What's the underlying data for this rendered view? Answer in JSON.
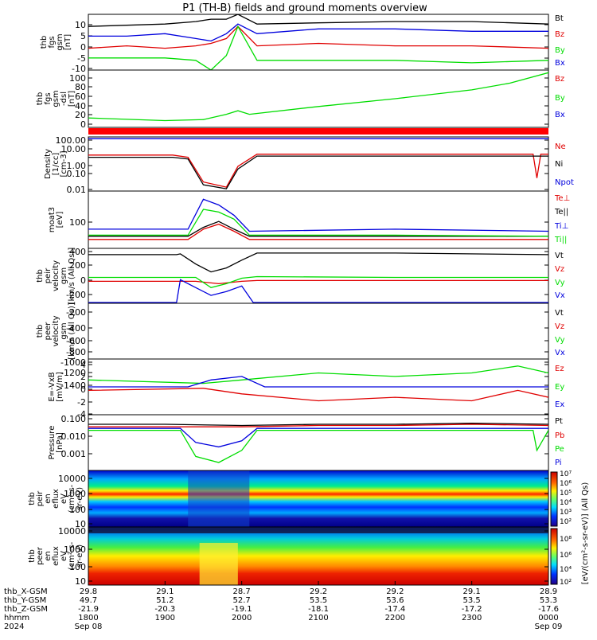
{
  "title": "P1  (TH-B) fields and ground moments overview",
  "colors": {
    "black": "#000000",
    "red": "#e00000",
    "green": "#00dd00",
    "blue": "#0000dd"
  },
  "panels": [
    {
      "id": "fgs",
      "ylabel": [
        "thb",
        "fgs",
        "gsm",
        "[nT]"
      ],
      "ticks": [
        "10",
        "5",
        "0",
        "-5",
        "-10"
      ],
      "legend": [
        {
          "label": "Bt",
          "color": "#000000"
        },
        {
          "label": "Bz",
          "color": "#e00000"
        },
        {
          "label": "By",
          "color": "#00dd00"
        },
        {
          "label": "Bx",
          "color": "#0000dd"
        }
      ]
    },
    {
      "id": "fgs_dsl",
      "ylabel": [
        "thb",
        "fgs",
        "gsm",
        "-dsl",
        "[nT]"
      ],
      "ticks": [
        "100",
        "80",
        "60",
        "40",
        "20",
        "0"
      ],
      "legend": [
        {
          "label": "Bz",
          "color": "#e00000"
        },
        {
          "label": "By",
          "color": "#00dd00"
        },
        {
          "label": "Bx",
          "color": "#0000dd"
        }
      ]
    },
    {
      "id": "density",
      "ylabel": [
        "Density",
        "[1/cc]",
        "[cm-3]"
      ],
      "ticks": [
        "100.00",
        "10.00",
        "1.00",
        "0.10",
        "0.01"
      ],
      "legend": [
        {
          "label": "Ne",
          "color": "#e00000"
        },
        {
          "label": "Ni",
          "color": "#000000"
        },
        {
          "label": "Npot",
          "color": "#0000dd"
        }
      ]
    },
    {
      "id": "temp",
      "ylabel": [
        "moat3",
        "[eV]"
      ],
      "ticks": [
        "100"
      ],
      "legend": [
        {
          "label": "Te⊥",
          "color": "#e00000"
        },
        {
          "label": "Te||",
          "color": "#000000"
        },
        {
          "label": "Ti⊥",
          "color": "#0000dd"
        },
        {
          "label": "Ti||",
          "color": "#00dd00"
        }
      ]
    },
    {
      "id": "peir_vel",
      "ylabel": [
        "thb",
        "peir",
        "velocity",
        "gsm",
        "[km/s (All Qs)]"
      ],
      "ticks": [
        "400",
        "200",
        "0",
        "-200"
      ],
      "legend": [
        {
          "label": "Vt",
          "color": "#000000"
        },
        {
          "label": "Vz",
          "color": "#e00000"
        },
        {
          "label": "Vy",
          "color": "#00dd00"
        },
        {
          "label": "Vx",
          "color": "#0000dd"
        }
      ]
    },
    {
      "id": "peer_vel",
      "ylabel": [
        "thb",
        "peer",
        "velocity",
        "gsm",
        "[km/s (All Qs)]"
      ],
      "ticks": [
        "-200",
        "-400",
        "-600",
        "-800",
        "-1000",
        "-1200",
        "-1400"
      ],
      "legend": [
        {
          "label": "Vt",
          "color": "#000000"
        },
        {
          "label": "Vz",
          "color": "#e00000"
        },
        {
          "label": "Vy",
          "color": "#00dd00"
        },
        {
          "label": "Vx",
          "color": "#0000dd"
        }
      ]
    },
    {
      "id": "efield",
      "ylabel": [
        "E=-VxB",
        "[mV/m]"
      ],
      "ticks": [
        "4",
        "2",
        "0",
        "-2",
        "-4"
      ],
      "legend": [
        {
          "label": "Ez",
          "color": "#e00000"
        },
        {
          "label": "Ey",
          "color": "#00dd00"
        },
        {
          "label": "Ex",
          "color": "#0000dd"
        }
      ]
    },
    {
      "id": "pressure",
      "ylabel": [
        "Pressure",
        "[nPa]"
      ],
      "ticks": [
        "0.100",
        "0.010",
        "0.001"
      ],
      "legend": [
        {
          "label": "Pt",
          "color": "#000000"
        },
        {
          "label": "Pb",
          "color": "#e00000"
        },
        {
          "label": "Pe",
          "color": "#00dd00"
        },
        {
          "label": "Pi",
          "color": "#0000dd"
        }
      ]
    },
    {
      "id": "peir_spec",
      "ylabel": [
        "thb",
        "peir",
        "en",
        "eflux",
        "eV",
        "(cm²-s-",
        "sr-eV)"
      ],
      "ticks": [
        "10000",
        "1000",
        "100",
        "10"
      ]
    },
    {
      "id": "peer_spec",
      "ylabel": [
        "thb",
        "peer",
        "en",
        "eflux",
        "eV",
        "(cm²-s-",
        "sr-eV)"
      ],
      "ticks": [
        "10000",
        "1000",
        "100",
        "10"
      ]
    }
  ],
  "colorbar_labels": {
    "ion": [
      "10⁷",
      "10⁶",
      "10⁵",
      "10⁴",
      "10³",
      "10²"
    ],
    "electron": [
      "10⁸",
      "10⁶",
      "10⁴",
      "10²"
    ],
    "title": "[eV/(cm²-s-sr-eV)] (All Qs)"
  },
  "x_axis": {
    "row_labels": [
      "thb_X-GSM",
      "thb_Y-GSM",
      "thb_Z-GSM",
      "hhmm",
      "2024"
    ],
    "columns": [
      [
        "29.8",
        "49.7",
        "-21.9",
        "1800",
        "Sep 08"
      ],
      [
        "29.1",
        "51.2",
        "-20.3",
        "1900",
        ""
      ],
      [
        "28.7",
        "52.7",
        "-19.1",
        "2000",
        ""
      ],
      [
        "29.2",
        "53.5",
        "-18.1",
        "2100",
        ""
      ],
      [
        "29.2",
        "53.6",
        "-17.4",
        "2200",
        ""
      ],
      [
        "29.1",
        "53.5",
        "-17.2",
        "2300",
        ""
      ],
      [
        "28.9",
        "53.3",
        "-17.6",
        "0000",
        "Sep 09"
      ]
    ]
  },
  "chart_data": {
    "type": "line",
    "title": "P1  (TH-B) fields and ground moments overview",
    "x_time_hhmm": [
      "1800",
      "1900",
      "2000",
      "2100",
      "2200",
      "2300",
      "0000"
    ],
    "x_span_hours": [
      0,
      6
    ],
    "panels": [
      {
        "id": "fgs",
        "ylim": [
          -10,
          13
        ],
        "series": [
          {
            "name": "Bt",
            "x": [
              0,
              0.5,
              1.0,
              1.4,
              1.6,
              1.8,
              1.95,
              2.2,
              3,
              4,
              5,
              6
            ],
            "y": [
              8,
              8.5,
              9,
              10,
              11,
              11,
              13,
              9,
              9.5,
              10,
              10,
              9
            ]
          },
          {
            "name": "Bz",
            "x": [
              0,
              0.5,
              1.0,
              1.4,
              1.6,
              1.8,
              1.95,
              2.2,
              3,
              4,
              5,
              6
            ],
            "y": [
              -1,
              0,
              -1,
              0,
              1,
              3,
              8,
              0,
              1,
              0,
              0,
              -1
            ]
          },
          {
            "name": "By",
            "x": [
              0,
              0.5,
              1.0,
              1.4,
              1.6,
              1.8,
              1.95,
              2.2,
              3,
              4,
              5,
              6
            ],
            "y": [
              -5,
              -5,
              -5,
              -6,
              -10,
              -4,
              8,
              -6,
              -6,
              -6,
              -7,
              -6
            ]
          },
          {
            "name": "Bx",
            "x": [
              0,
              0.5,
              1.0,
              1.4,
              1.6,
              1.8,
              1.95,
              2.2,
              3,
              4,
              5,
              6
            ],
            "y": [
              4,
              4,
              5,
              3,
              2,
              5,
              9,
              5,
              7,
              7,
              6,
              6
            ]
          }
        ]
      },
      {
        "id": "fgs_dsl",
        "ylim": [
          -10,
          100
        ],
        "series": [
          {
            "name": "By",
            "x": [
              0,
              1,
              1.5,
              1.8,
              1.95,
              2.1,
              3,
              4,
              5,
              5.5,
              6
            ],
            "y": [
              8,
              3,
              5,
              15,
              22,
              15,
              30,
              45,
              62,
              75,
              95
            ]
          }
        ]
      },
      {
        "id": "density",
        "scale": "log",
        "ylim": [
          0.01,
          150
        ],
        "series": [
          {
            "name": "Ne",
            "x": [
              0,
              1.1,
              1.3,
              1.5,
              1.8,
              1.95,
              2.2,
              4,
              5.8,
              5.85,
              5.9,
              6
            ],
            "y": [
              6,
              6,
              4,
              0.05,
              0.02,
              0.8,
              7,
              7,
              7,
              0.1,
              7,
              7
            ]
          },
          {
            "name": "Ni",
            "x": [
              0,
              1.1,
              1.3,
              1.5,
              1.8,
              1.95,
              2.2,
              4,
              6
            ],
            "y": [
              4,
              4,
              3,
              0.03,
              0.015,
              0.5,
              5,
              5,
              5
            ]
          },
          {
            "name": "Npot",
            "x": [
              0,
              1,
              2,
              3,
              4,
              5,
              6
            ],
            "y": [
              110,
              110,
              110,
              110,
              110,
              110,
              110
            ]
          }
        ]
      },
      {
        "id": "temp",
        "scale": "log",
        "ylim": [
          15,
          400
        ],
        "series": [
          {
            "name": "Te⊥",
            "x": [
              0,
              1.3,
              1.5,
              1.7,
              1.9,
              2.1,
              4,
              6
            ],
            "y": [
              25,
              25,
              45,
              60,
              40,
              25,
              25,
              25
            ]
          },
          {
            "name": "Te||",
            "x": [
              0,
              1.3,
              1.5,
              1.7,
              1.9,
              2.1,
              4,
              6
            ],
            "y": [
              30,
              30,
              50,
              70,
              45,
              30,
              30,
              30
            ]
          },
          {
            "name": "Ti⊥",
            "x": [
              0,
              1.3,
              1.5,
              1.7,
              1.9,
              2.1,
              4,
              6
            ],
            "y": [
              45,
              45,
              250,
              180,
              100,
              40,
              45,
              40
            ]
          },
          {
            "name": "Ti||",
            "x": [
              0,
              1.3,
              1.5,
              1.7,
              1.9,
              2.1,
              4,
              6
            ],
            "y": [
              32,
              32,
              140,
              120,
              80,
              32,
              32,
              30
            ]
          }
        ]
      },
      {
        "id": "peir_vel",
        "ylim": [
          -300,
          400
        ],
        "series": [
          {
            "name": "Vt",
            "x": [
              0,
              1.15,
              1.2,
              1.4,
              1.6,
              1.8,
              2.0,
              2.2,
              4,
              6
            ],
            "y": [
              320,
              320,
              330,
              200,
              100,
              150,
              250,
              340,
              340,
              320
            ]
          },
          {
            "name": "Vz",
            "x": [
              0,
              1.4,
              1.7,
              2.0,
              2.2,
              4,
              6
            ],
            "y": [
              -20,
              -20,
              -50,
              -20,
              -10,
              -10,
              -10
            ]
          },
          {
            "name": "Vy",
            "x": [
              0,
              1.4,
              1.6,
              1.8,
              2.0,
              2.2,
              4,
              6
            ],
            "y": [
              30,
              30,
              -100,
              -50,
              20,
              40,
              30,
              30
            ]
          },
          {
            "name": "Vx",
            "x": [
              0,
              1.15,
              1.2,
              1.4,
              1.6,
              1.8,
              2.0,
              2.15,
              4,
              6
            ],
            "y": [
              -290,
              -290,
              0,
              -100,
              -200,
              -150,
              -80,
              -290,
              -290,
              -290
            ]
          }
        ]
      },
      {
        "id": "peer_vel",
        "ylim": [
          -1500,
          0
        ],
        "series": []
      },
      {
        "id": "efield",
        "ylim": [
          -4,
          4
        ],
        "series": [
          {
            "name": "Ez",
            "x": [
              0,
              1.5,
              2.0,
              3,
              4,
              5,
              5.6,
              6
            ],
            "y": [
              -0.5,
              -0.2,
              -1,
              -2,
              -1.5,
              -2,
              -0.5,
              -1.5
            ]
          },
          {
            "name": "Ey",
            "x": [
              0,
              1.5,
              2.0,
              3,
              4,
              5,
              5.6,
              6
            ],
            "y": [
              1,
              0.5,
              1,
              2,
              1.5,
              2,
              3,
              2
            ]
          },
          {
            "name": "Ex",
            "x": [
              0,
              1.3,
              1.6,
              2.0,
              2.3,
              4,
              6
            ],
            "y": [
              0,
              0,
              1,
              1.5,
              0,
              0,
              0
            ]
          }
        ]
      },
      {
        "id": "pressure",
        "scale": "log",
        "ylim": [
          0.0002,
          0.12
        ],
        "series": [
          {
            "name": "Pt",
            "x": [
              0,
              1,
              2,
              3,
              4,
              5,
              6
            ],
            "y": [
              0.04,
              0.04,
              0.035,
              0.04,
              0.04,
              0.045,
              0.04
            ]
          },
          {
            "name": "Pb",
            "x": [
              0,
              1,
              2,
              3,
              4,
              5,
              6
            ],
            "y": [
              0.03,
              0.03,
              0.03,
              0.035,
              0.035,
              0.04,
              0.035
            ]
          },
          {
            "name": "Pe",
            "x": [
              0,
              1.2,
              1.4,
              1.7,
              2.0,
              2.2,
              4,
              5.8,
              5.85,
              6
            ],
            "y": [
              0.02,
              0.02,
              0.001,
              0.0005,
              0.002,
              0.02,
              0.02,
              0.02,
              0.002,
              0.02
            ]
          },
          {
            "name": "Pi",
            "x": [
              0,
              1.2,
              1.4,
              1.7,
              2.0,
              2.2,
              4,
              6
            ],
            "y": [
              0.025,
              0.025,
              0.005,
              0.003,
              0.006,
              0.025,
              0.025,
              0.025
            ]
          }
        ]
      }
    ],
    "spectrograms": [
      {
        "id": "peir_spec",
        "type": "heatmap",
        "y_scale": "log",
        "ylim": [
          5,
          25000
        ],
        "z_scale": "log",
        "zlim": [
          100,
          10000000
        ]
      },
      {
        "id": "peer_spec",
        "type": "heatmap",
        "y_scale": "log",
        "ylim": [
          5,
          25000
        ],
        "z_scale": "log",
        "zlim": [
          100,
          100000000
        ]
      }
    ]
  }
}
